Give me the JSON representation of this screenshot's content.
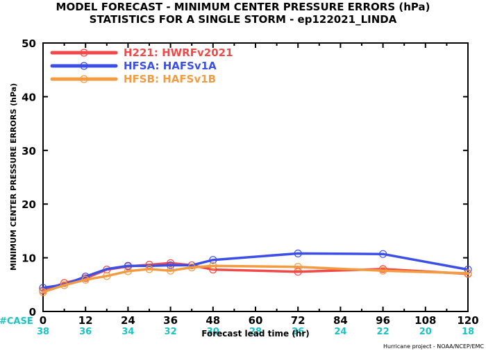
{
  "title": {
    "line1": "MODEL FORECAST - MINIMUM CENTER PRESSURE ERRORS (hPa)",
    "line2": "STATISTICS FOR A SINGLE STORM - ep122021_LINDA"
  },
  "case_label": "#CASE",
  "case_color": "#19c4c4",
  "credit": "Hurricane project - NOAA/NCEP/EMC",
  "chart_data": {
    "type": "line",
    "xlabel": "Forecast lead time (hr)",
    "ylabel": "MINIMUM CENTER PRESSURE ERRORS (hPa)",
    "xlim": [
      0,
      120
    ],
    "ylim": [
      0,
      50
    ],
    "x_ticks": [
      0,
      12,
      24,
      36,
      48,
      60,
      72,
      84,
      96,
      108,
      120
    ],
    "y_ticks": [
      0,
      10,
      20,
      30,
      40,
      50
    ],
    "case_x": [
      0,
      12,
      24,
      36,
      48,
      60,
      72,
      84,
      96,
      108,
      120
    ],
    "case_counts": [
      "38",
      "36",
      "34",
      "32",
      "30",
      "28",
      "26",
      "24",
      "22",
      "20",
      "18"
    ],
    "grid": false,
    "legend_position": "top-left",
    "series": [
      {
        "name": "H221: HWRFv2021",
        "color": "#f24848",
        "points": [
          [
            0,
            3.9
          ],
          [
            6,
            5.3
          ],
          [
            12,
            6.2
          ],
          [
            18,
            7.8
          ],
          [
            24,
            8.4
          ],
          [
            30,
            8.7
          ],
          [
            36,
            9.0
          ],
          [
            42,
            8.6
          ],
          [
            48,
            7.8
          ],
          [
            72,
            7.4
          ],
          [
            96,
            7.9
          ],
          [
            120,
            7.0
          ]
        ],
        "markers_at": [
          0,
          6,
          12,
          18,
          24,
          30,
          36,
          42,
          48,
          72,
          96,
          120
        ]
      },
      {
        "name": "HFSA: HAFSv1A",
        "color": "#3b4fe6",
        "points": [
          [
            0,
            4.4
          ],
          [
            6,
            5.0
          ],
          [
            12,
            6.5
          ],
          [
            18,
            7.9
          ],
          [
            24,
            8.5
          ],
          [
            30,
            8.5
          ],
          [
            36,
            8.6
          ],
          [
            42,
            8.6
          ],
          [
            48,
            9.6
          ],
          [
            72,
            10.8
          ],
          [
            96,
            10.7
          ],
          [
            120,
            7.8
          ]
        ],
        "markers_at": [
          0,
          12,
          24,
          36,
          48,
          72,
          96,
          120
        ]
      },
      {
        "name": "HFSB: HAFSv1B",
        "color": "#f29b40",
        "points": [
          [
            0,
            3.6
          ],
          [
            6,
            4.9
          ],
          [
            12,
            5.9
          ],
          [
            18,
            6.6
          ],
          [
            24,
            7.5
          ],
          [
            30,
            7.9
          ],
          [
            36,
            7.6
          ],
          [
            42,
            8.2
          ],
          [
            48,
            8.5
          ],
          [
            72,
            8.3
          ],
          [
            96,
            7.6
          ],
          [
            120,
            7.1
          ]
        ],
        "markers_at": [
          0,
          6,
          12,
          18,
          24,
          30,
          36,
          42,
          48,
          72,
          96,
          120
        ]
      }
    ]
  }
}
